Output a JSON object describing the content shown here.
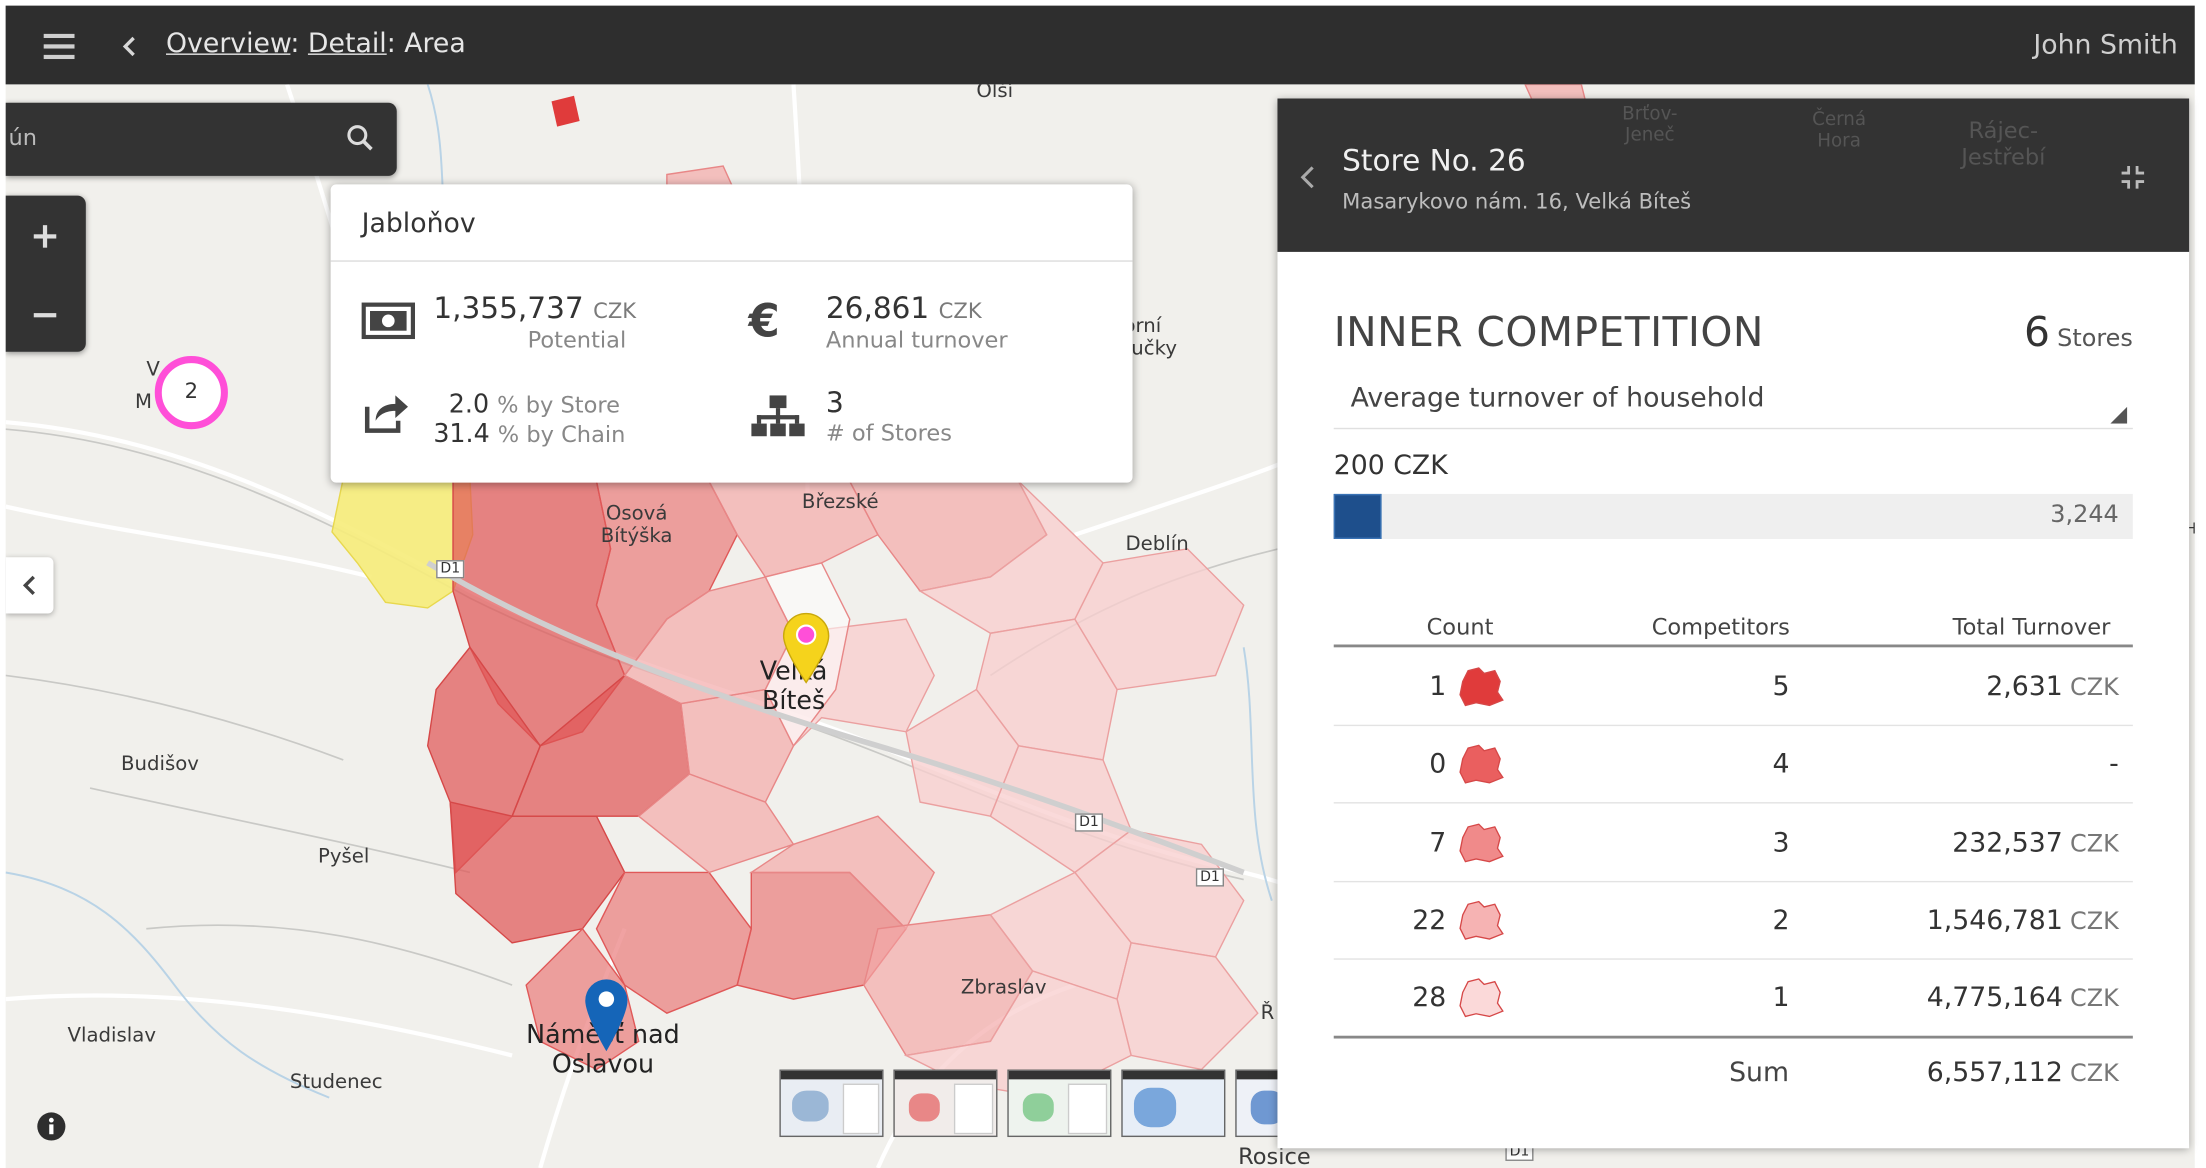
{
  "topbar": {
    "breadcrumb": [
      {
        "label": "Overview",
        "link": true
      },
      {
        "label": "Detail",
        "link": true
      },
      {
        "label": "Area",
        "link": false
      }
    ],
    "separator": ":",
    "user_name": "John Smith"
  },
  "search": {
    "value": "ún"
  },
  "map_labels": {
    "olsi": "Olší",
    "osova_bityska": "Osová\nBítýška",
    "brezske": "Březské",
    "deblin": "Deblín",
    "velka_bites": "Velká\nBíteš",
    "budisov": "Budišov",
    "pysel": "Pyšel",
    "zbraslav": "Zbraslav",
    "vladislav": "Vladislav",
    "studenec": "Studenec",
    "namest": "Náměšť nad\nOslavou",
    "rosice": "Rosice",
    "horni_loucky": "Horní\nLoučky",
    "d1_a": "D1",
    "d1_b": "D1",
    "d1_c": "D1",
    "d1_d": "D1",
    "r_edge": "Ř",
    "v_edge": "V",
    "m_edge": "M",
    "brtov": "Brťov-\nJeneč",
    "cerna_hora": "Černá\nHora",
    "rajec": "Rájec-\nJestřebí",
    "hk_edge": "HK",
    "cluster_count": "2"
  },
  "popup": {
    "title": "Jabloňov",
    "potential_value": "1,355,737",
    "potential_unit": "CZK",
    "potential_label": "Potential",
    "turnover_value": "26,861",
    "turnover_unit": "CZK",
    "turnover_label": "Annual turnover",
    "store_share": "2.0",
    "chain_share": "31.4",
    "store_share_label": "% by Store",
    "chain_share_label": "% by Chain",
    "stores_count": "3",
    "stores_label": "# of Stores"
  },
  "store_panel": {
    "title": "Store No. 26",
    "address": "Masarykovo nám. 16, Velká Bíteš",
    "section_title": "INNER COMPETITION",
    "stores_count": "6",
    "stores_label": "Stores",
    "metric_select": "Average turnover of household",
    "range_min_label": "200 CZK",
    "range_max_value": "3,244",
    "range_fill_fraction": 0.06,
    "table_headers": [
      "Count",
      "Competitors",
      "Total Turnover"
    ],
    "rows": [
      {
        "count": "1",
        "competitors": "5",
        "turnover": "2,631",
        "unit": "CZK",
        "color": "#e03b3b"
      },
      {
        "count": "0",
        "competitors": "4",
        "turnover": "-",
        "unit": "",
        "color": "#ea5f5f"
      },
      {
        "count": "7",
        "competitors": "3",
        "turnover": "232,537",
        "unit": "CZK",
        "color": "#f08a8a"
      },
      {
        "count": "22",
        "competitors": "2",
        "turnover": "1,546,781",
        "unit": "CZK",
        "color": "#f6b3b3"
      },
      {
        "count": "28",
        "competitors": "1",
        "turnover": "4,775,164",
        "unit": "CZK",
        "color": "#fbd9d9"
      }
    ],
    "sum_label": "Sum",
    "sum_value": "6,557,112",
    "sum_unit": "CZK"
  },
  "colors": {
    "topbar": "#2e2e2e",
    "cluster_ring": "#ff4fd8",
    "marker_yellow": "#f5d31c",
    "marker_blue": "#1565b8",
    "range_fill": "#1e4f8c",
    "zone_strong": "#e05858",
    "zone_light": "#f6c8c8",
    "zone_yellow": "#f6ec7a"
  },
  "icons": {
    "menu": "menu-icon",
    "back": "chevron-left-icon",
    "search": "search-icon",
    "zoom_in": "plus-icon",
    "zoom_out": "minus-icon",
    "money": "banknote-icon",
    "euro": "euro-icon",
    "share": "share-icon",
    "org": "sitemap-icon",
    "collapse": "compress-icon",
    "info": "info-icon"
  }
}
